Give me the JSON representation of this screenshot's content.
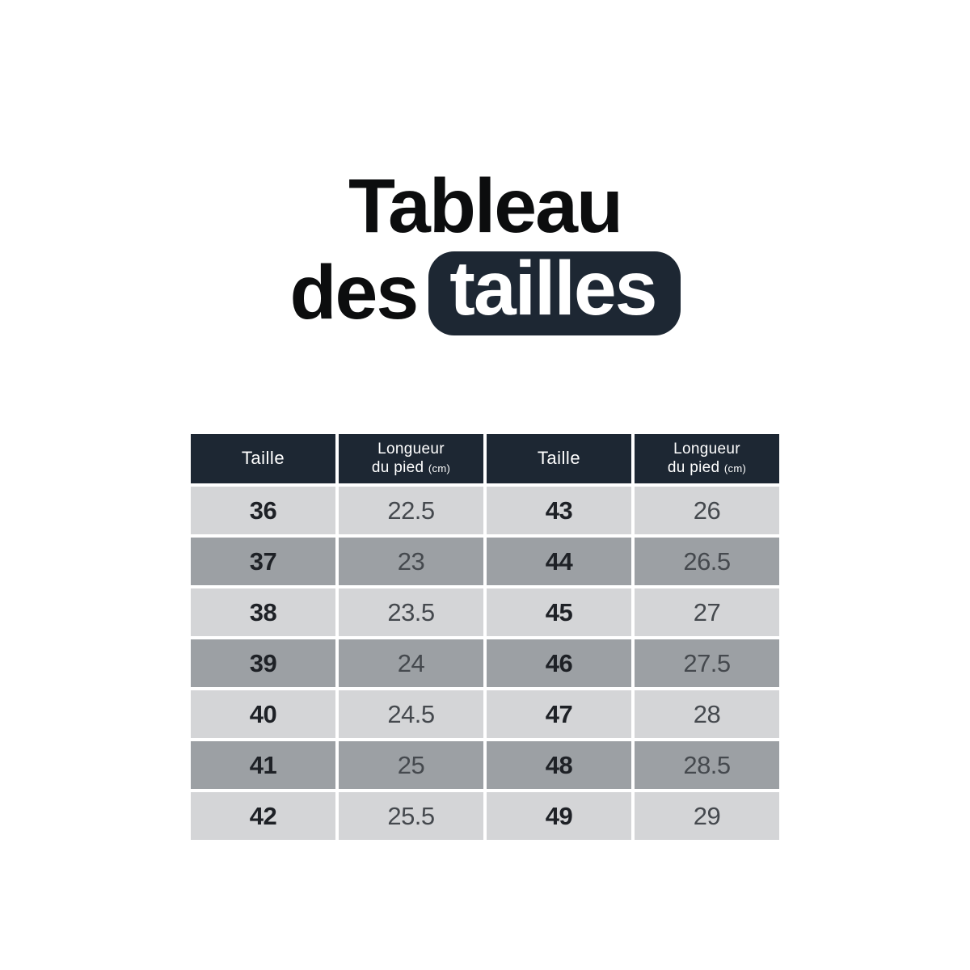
{
  "title": {
    "line1": "Tableau",
    "line2_prefix": "des",
    "line2_badge": "tailles"
  },
  "chart_data": {
    "type": "table",
    "title": "Tableau des tailles",
    "columns": [
      "Taille",
      "Longueur du pied (cm)",
      "Taille",
      "Longueur du pied (cm)"
    ],
    "header_display": [
      {
        "title": "Taille"
      },
      {
        "line1": "Longueur",
        "line2": "du pied",
        "unit": "(cm)"
      },
      {
        "title": "Taille"
      },
      {
        "line1": "Longueur",
        "line2": "du pied",
        "unit": "(cm)"
      }
    ],
    "rows": [
      [
        "36",
        "22.5",
        "43",
        "26"
      ],
      [
        "37",
        "23",
        "44",
        "26.5"
      ],
      [
        "38",
        "23.5",
        "45",
        "27"
      ],
      [
        "39",
        "24",
        "46",
        "27.5"
      ],
      [
        "40",
        "24.5",
        "47",
        "28"
      ],
      [
        "41",
        "25",
        "48",
        "28.5"
      ],
      [
        "42",
        "25.5",
        "49",
        "29"
      ]
    ]
  },
  "colors": {
    "header_navy": "#1d2733",
    "badge_navy": "#1d2733",
    "row_light": "#d4d5d7",
    "row_dark": "#9ca0a4",
    "size_text": "#1e2126",
    "length_text": "#45494e",
    "background": "#ffffff"
  }
}
